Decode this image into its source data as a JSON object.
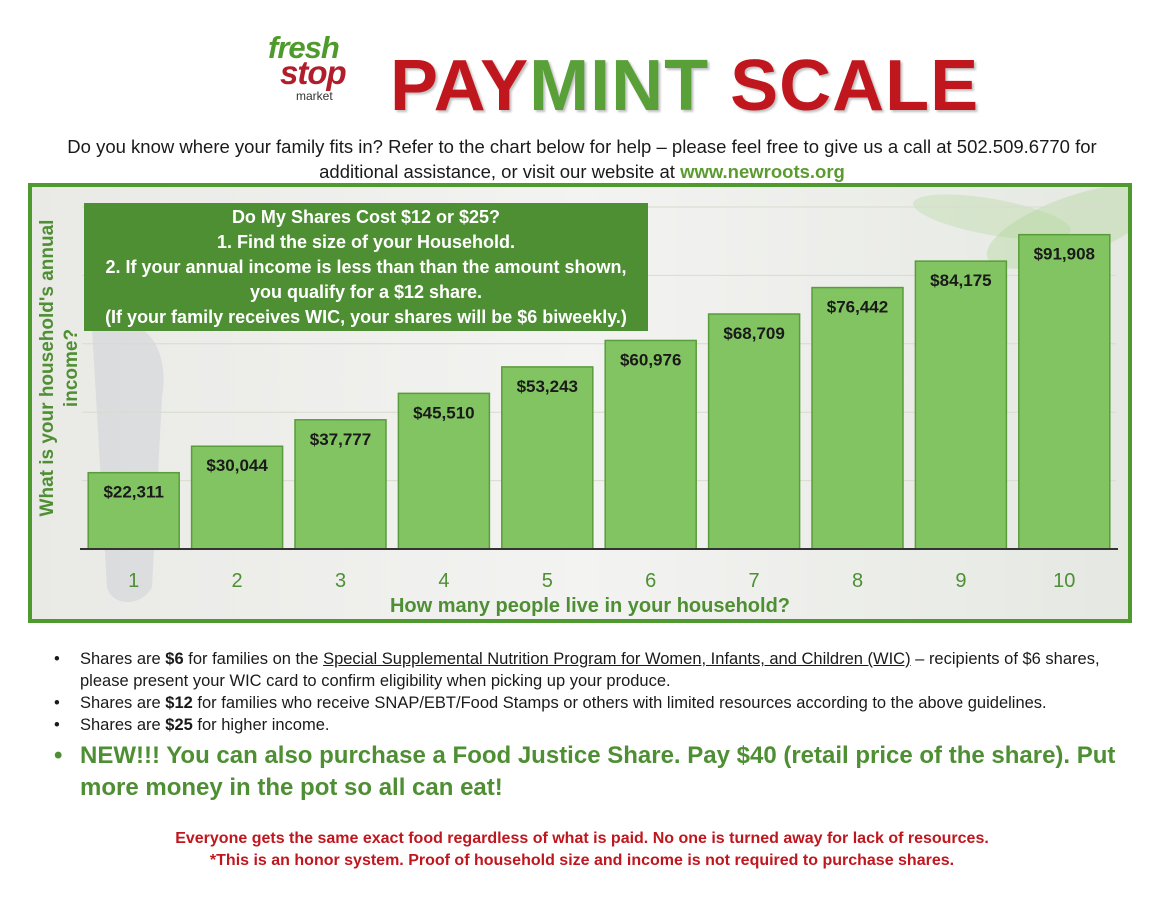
{
  "logo": {
    "fresh": "fresh",
    "stop": "stop",
    "market": "market"
  },
  "title": {
    "part1": "PAY",
    "part2": "MINT",
    "part3": "SCALE"
  },
  "intro": {
    "text": "Do you know where your family fits in?  Refer to the chart below for help – please feel free to give us a call at 502.509.6770 for additional assistance, or visit our website at ",
    "website": "www.newroots.org"
  },
  "callout": {
    "line1": "Do My Shares Cost $12 or $25?",
    "line2": "1. Find the size of your Household.",
    "line3": "2. If your annual income is less than than the amount shown,",
    "line4": "you qualify for a $12 share.",
    "line5": "(If your family receives WIC, your shares will be $6 biweekly.)"
  },
  "chart_data": {
    "type": "bar",
    "xlabel": "How many people live in your household?",
    "ylabel": "What is your household's annual income?",
    "categories": [
      "1",
      "2",
      "3",
      "4",
      "5",
      "6",
      "7",
      "8",
      "9",
      "10"
    ],
    "values": [
      22311,
      30044,
      37777,
      45510,
      53243,
      60976,
      68709,
      76442,
      84175,
      91908
    ],
    "value_labels": [
      "$22,311",
      "$30,044",
      "$37,777",
      "$45,510",
      "$53,243",
      "$60,976",
      "$68,709",
      "$76,442",
      "$84,175",
      "$91,908"
    ],
    "ylim": [
      0,
      100000
    ],
    "grid": true,
    "bar_color": "#82c462",
    "bar_border_color": "#5a9b3c"
  },
  "bullets": {
    "b1_pre": "Shares are ",
    "b1_bold": "$6",
    "b1_mid": " for families on the ",
    "b1_link": "Special Supplemental Nutrition Program for Women, Infants, and Children (WIC)",
    "b1_post": " – recipients of $6 shares, please present your WIC card to confirm eligibility when picking up your produce.",
    "b2_pre": "Shares are ",
    "b2_bold": "$12",
    "b2_post": " for families who receive SNAP/EBT/Food Stamps or others with limited resources according to the above guidelines.",
    "b3_pre": "Shares are ",
    "b3_bold": "$25",
    "b3_post": " for higher income.",
    "b4": "NEW!!! You can also purchase a Food Justice Share. Pay $40 (retail price of the share). Put more money in the pot so all can eat!",
    "marker": "•"
  },
  "footer": {
    "line1": "Everyone gets the same exact food regardless of what is paid. No one is turned away for lack of resources.",
    "line2": "*This is an honor system.  Proof of household size and income is not required to purchase shares."
  },
  "colors": {
    "red": "#c0161e",
    "green": "#4e8f33",
    "bar": "#82c462"
  }
}
